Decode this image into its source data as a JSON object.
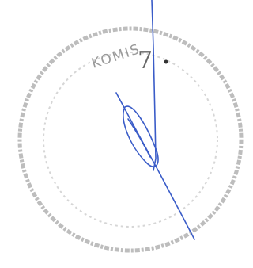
{
  "stamp": {
    "text": "KOMIS",
    "number": "7"
  }
}
